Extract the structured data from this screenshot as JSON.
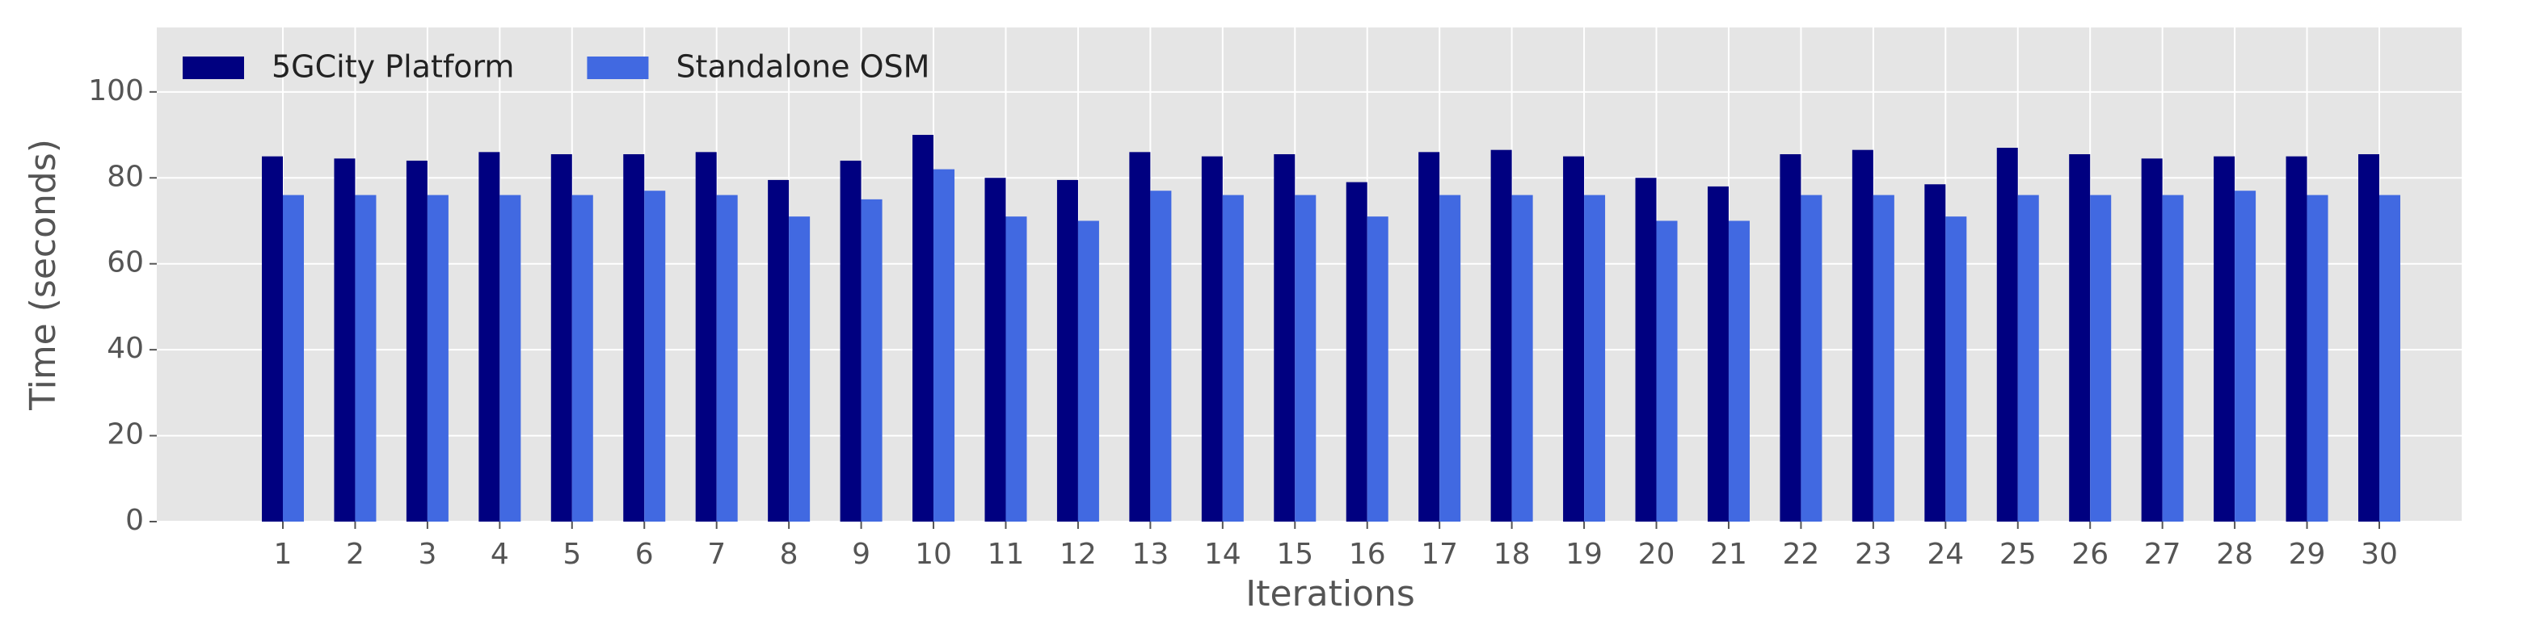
{
  "chart_data": {
    "type": "bar",
    "xlabel": "Iterations",
    "ylabel": "Time (seconds)",
    "categories": [
      "1",
      "2",
      "3",
      "4",
      "5",
      "6",
      "7",
      "8",
      "9",
      "10",
      "11",
      "12",
      "13",
      "14",
      "15",
      "16",
      "17",
      "18",
      "19",
      "20",
      "21",
      "22",
      "23",
      "24",
      "25",
      "26",
      "27",
      "28",
      "29",
      "30"
    ],
    "series": [
      {
        "name": "5GCity Platform",
        "color": "#000080",
        "values": [
          85,
          84.5,
          84,
          86,
          85.5,
          85.5,
          86,
          79.5,
          84,
          90,
          80,
          79.5,
          86,
          85,
          85.5,
          79,
          86,
          86.5,
          85,
          80,
          78,
          85.5,
          86.5,
          78.5,
          87,
          85.5,
          84.5,
          85,
          85,
          85.5
        ]
      },
      {
        "name": "Standalone OSM",
        "color": "#4169e1",
        "values": [
          76,
          76,
          76,
          76,
          76,
          77,
          76,
          71,
          75,
          82,
          71,
          70,
          77,
          76,
          76,
          71,
          76,
          76,
          76,
          70,
          70,
          76,
          76,
          71,
          76,
          76,
          76,
          77,
          76,
          76
        ]
      }
    ],
    "ylim": [
      0,
      115
    ],
    "yticks": [
      0,
      20,
      40,
      60,
      80,
      100
    ],
    "grid": true,
    "legend": "upper left"
  }
}
